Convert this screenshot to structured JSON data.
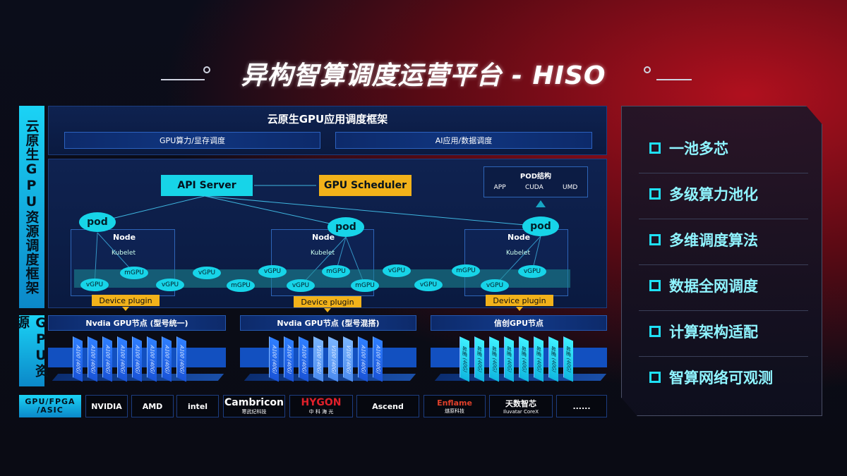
{
  "title": "异构智算调度运营平台 - HISO",
  "side_labels": {
    "framework": "云原生GPU资源调度框架",
    "resources": "GPU资源"
  },
  "app_framework": {
    "title": "云原生GPU应用调度框架",
    "bars": [
      "GPU算力/显存调度",
      "AI应用/数据调度"
    ]
  },
  "scheduler": {
    "api_server": "API Server",
    "gpu_scheduler": "GPU Scheduler",
    "pod_structure": {
      "title": "POD结构",
      "items": [
        "APP",
        "CUDA",
        "UMD"
      ]
    },
    "pod_label": "pod",
    "node_label": "Node",
    "kubelet_label": "Kubelet",
    "device_plugin": "Device plugin",
    "vgpu_chips": [
      "vGPU",
      "mGPU",
      "vGPU",
      "vGPU",
      "mGPU",
      "vGPU",
      "vGPU",
      "mGPU",
      "mGPU",
      "vGPU",
      "vGPU",
      "mGPU",
      "vGPU",
      "vGPU"
    ]
  },
  "gpu_nodes": [
    {
      "title": "Nvdia GPU节点 (型号统一)",
      "cards": [
        "A100 (40G)",
        "A100 (40G)",
        "A100 (40G)",
        "A100 (40G)",
        "A100 (40G)",
        "A100 (40G)",
        "A100 (40G)",
        "A100 (40G)"
      ]
    },
    {
      "title": "Nvdia GPU节点 (型号混搭)",
      "cards": [
        "A100 (40G)",
        "A100 (40G)",
        "A100 (40G)",
        "V100 (40G)",
        "V100 (40G)",
        "V100 (40G)",
        "A100 (40G)",
        "A100 (40G)"
      ]
    },
    {
      "title": "信创GPU节点",
      "cards": [
        "昇腾 (40G)",
        "昇腾 (40G)",
        "昇腾 (40G)",
        "昇腾 (40G)",
        "昇腾 (40G)",
        "昇腾 (40G)",
        "昇腾 (40G)",
        "昇腾 (40G)"
      ]
    }
  ],
  "vendors": {
    "label": "GPU/FPGA /ASIC",
    "logos": [
      {
        "name": "NVIDIA",
        "sub": ""
      },
      {
        "name": "AMD",
        "sub": ""
      },
      {
        "name": "intel",
        "sub": ""
      },
      {
        "name": "Cambricon",
        "sub": "寒武纪科技"
      },
      {
        "name": "HYGON",
        "sub": "中 科 海 光"
      },
      {
        "name": "Ascend",
        "sub": ""
      },
      {
        "name": "Enflame",
        "sub": "燧原科技"
      },
      {
        "name": "天数智芯",
        "sub": "Iluvatar CoreX"
      },
      {
        "name": "......",
        "sub": ""
      }
    ]
  },
  "features": [
    "一池多芯",
    "多级算力池化",
    "多维调度算法",
    "数据全网调度",
    "计算架构适配",
    "智算网络可观测"
  ],
  "colors": {
    "accent_cyan": "#17d4e8",
    "gold": "#f2b21a",
    "gpu_blue": "#2f7fff",
    "background_red": "#b0101e"
  }
}
